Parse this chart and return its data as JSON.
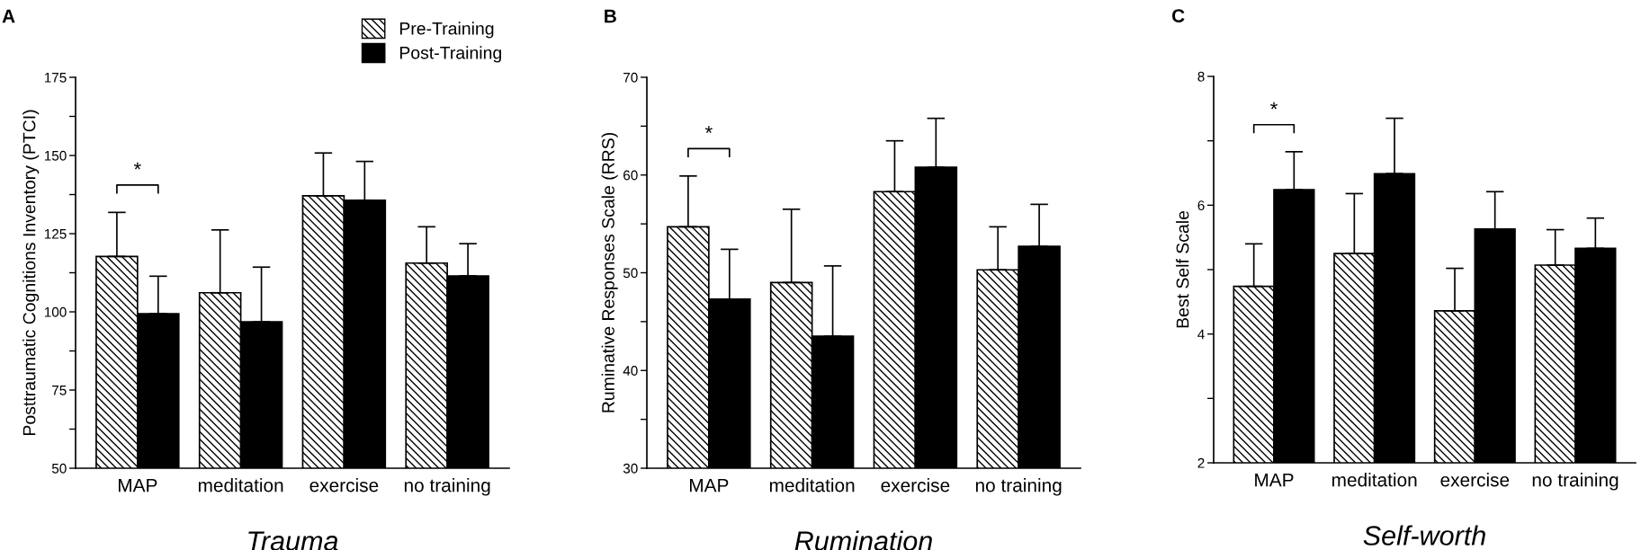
{
  "chart_data": [
    {
      "type": "bar",
      "title": "A",
      "xlabel": "Trauma",
      "ylabel": "Posttraumatic Cognitions Inventory (PTCI)",
      "categories": [
        "MAP",
        "meditation",
        "exercise",
        "no training"
      ],
      "series": [
        {
          "name": "Pre-Training",
          "color": "#000000",
          "values": [
            117.7,
            106.1,
            137.1,
            115.6
          ],
          "errors": [
            [
              117.7,
              131.8
            ],
            [
              106.1,
              126.2
            ],
            [
              137.1,
              150.8
            ],
            [
              115.6,
              127.2
            ]
          ]
        },
        {
          "name": "Post-Training",
          "color": "#000000",
          "values": [
            99.4,
            96.8,
            135.7,
            111.5
          ],
          "errors": [
            [
              99.4,
              111.4
            ],
            [
              96.8,
              114.3
            ],
            [
              135.7,
              148.1
            ],
            [
              111.5,
              121.8
            ]
          ]
        }
      ],
      "ylim": [
        50,
        175
      ],
      "yticks": [
        50,
        {
          "value": 62.5,
          "label": null
        },
        75,
        {
          "value": 87.5,
          "label": null
        },
        100,
        {
          "value": 112.5,
          "label": null
        },
        125,
        {
          "value": 137.5,
          "label": null
        },
        150,
        {
          "value": 162.5,
          "label": null
        },
        175
      ],
      "annotations": [
        "*"
      ],
      "legend": "top right"
    },
    {
      "type": "bar",
      "title": "B",
      "xlabel": "Rumination",
      "ylabel": "Ruminative Responses Scale (RRS)",
      "categories": [
        "MAP",
        "meditation",
        "exercise",
        "no training"
      ],
      "series": [
        {
          "color": "#000000",
          "values": [
            54.7,
            49.0,
            58.3,
            50.3
          ],
          "errors": [
            [
              54.7,
              59.9
            ],
            [
              49.0,
              56.5
            ],
            [
              58.3,
              63.5
            ],
            [
              50.3,
              54.7
            ]
          ]
        },
        {
          "color": "#000000",
          "values": [
            47.3,
            43.5,
            60.8,
            52.7
          ],
          "errors": [
            [
              47.3,
              52.4
            ],
            [
              43.5,
              50.7
            ],
            [
              60.8,
              65.8
            ],
            [
              52.7,
              57.0
            ]
          ]
        }
      ],
      "ylim": [
        30,
        70
      ],
      "yticks": [
        30,
        {
          "value": 35,
          "label": null
        },
        40,
        {
          "value": 45,
          "label": null
        },
        50,
        {
          "value": 55,
          "label": null
        },
        60,
        {
          "value": 65,
          "label": null
        },
        70
      ],
      "annotations": [
        "*"
      ]
    },
    {
      "type": "bar",
      "title": "C",
      "xlabel": "Self-worth",
      "ylabel": "Best Self Scale",
      "categories": [
        "MAP",
        "meditation",
        "exercise",
        "no training"
      ],
      "series": [
        {
          "color": "#000000",
          "values": [
            4.74,
            5.25,
            4.36,
            5.07
          ],
          "errors": [
            [
              4.74,
              5.4
            ],
            [
              5.25,
              6.18
            ],
            [
              4.36,
              5.02
            ],
            [
              5.07,
              5.62
            ]
          ]
        },
        {
          "color": "#000000",
          "values": [
            6.24,
            6.49,
            5.63,
            5.33
          ],
          "errors": [
            [
              6.24,
              6.83
            ],
            [
              6.49,
              7.35
            ],
            [
              5.63,
              6.21
            ],
            [
              5.33,
              5.8
            ]
          ]
        }
      ],
      "ylim": [
        2,
        8
      ],
      "yticks": [
        2,
        {
          "value": 3,
          "label": null
        },
        4,
        {
          "value": 5,
          "label": null
        },
        6,
        {
          "value": 7,
          "label": null
        },
        8
      ],
      "annotations": [
        "*"
      ]
    }
  ]
}
